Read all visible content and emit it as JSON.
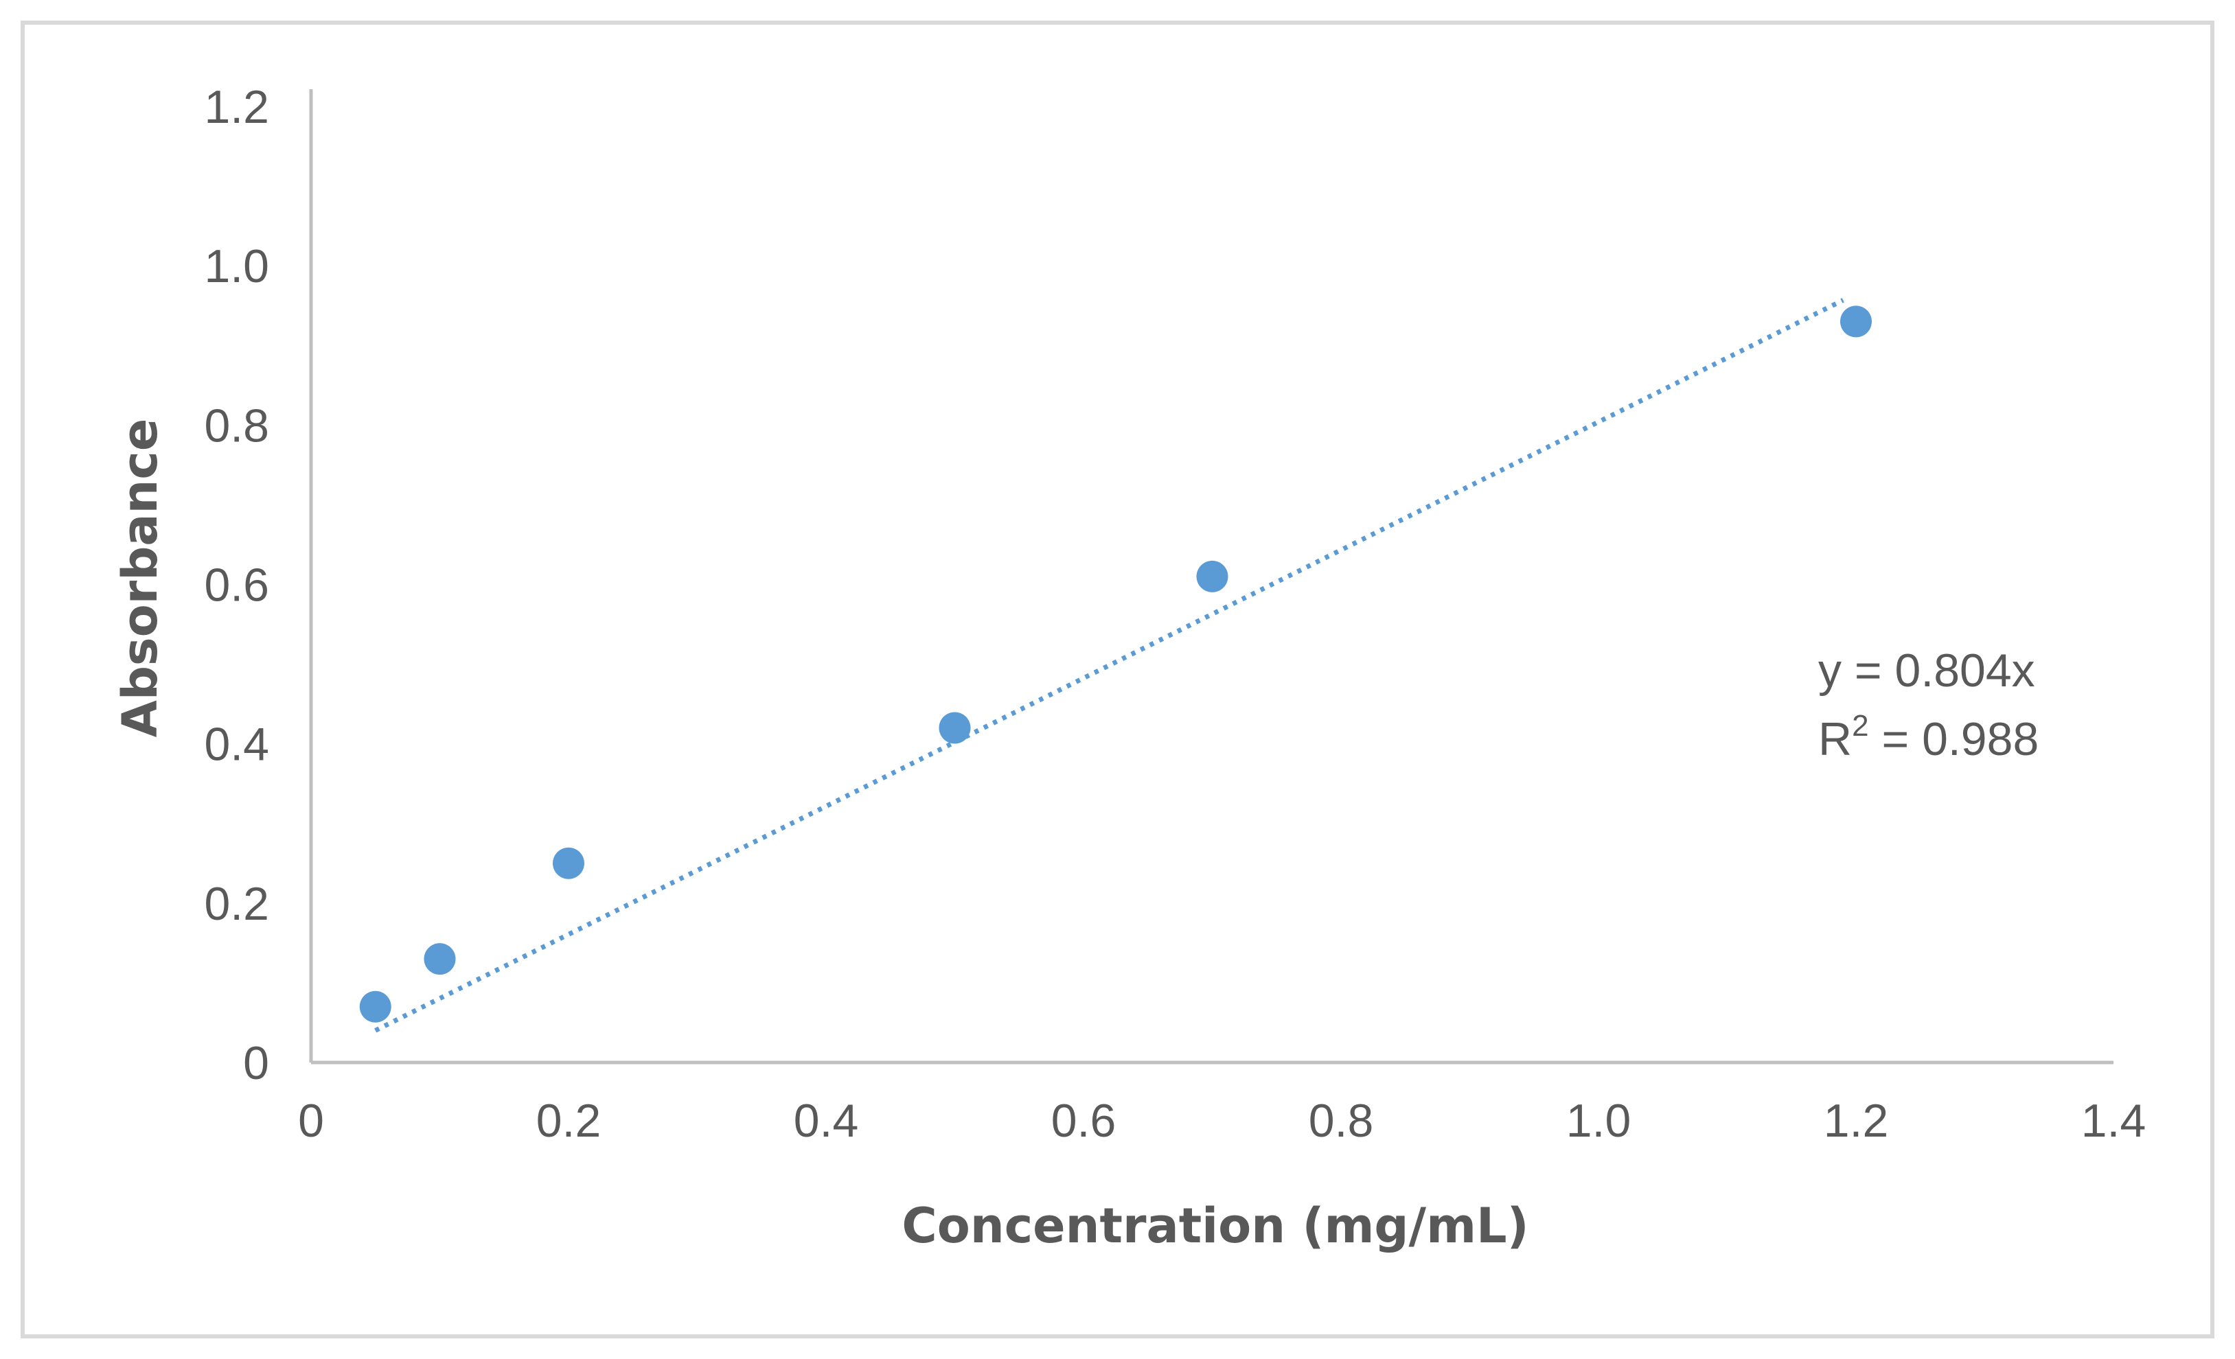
{
  "chart_data": {
    "type": "scatter",
    "title": "",
    "xlabel": "Concentration (mg/mL)",
    "ylabel": "Absorbance",
    "xlim": [
      0,
      1.4
    ],
    "ylim": [
      0,
      1.2
    ],
    "x_ticks": [
      {
        "value": 0,
        "label": "0"
      },
      {
        "value": 0.2,
        "label": "0.2"
      },
      {
        "value": 0.4,
        "label": "0.4"
      },
      {
        "value": 0.6,
        "label": "0.6"
      },
      {
        "value": 0.8,
        "label": "0.8"
      },
      {
        "value": 1.0,
        "label": "1.0"
      },
      {
        "value": 1.2,
        "label": "1.2"
      },
      {
        "value": 1.4,
        "label": "1.4"
      }
    ],
    "y_ticks": [
      {
        "value": 0,
        "label": "0"
      },
      {
        "value": 0.2,
        "label": "0.2"
      },
      {
        "value": 0.4,
        "label": "0.4"
      },
      {
        "value": 0.6,
        "label": "0.6"
      },
      {
        "value": 0.8,
        "label": "0.8"
      },
      {
        "value": 1.0,
        "label": "1.0"
      },
      {
        "value": 1.2,
        "label": "1.2"
      }
    ],
    "grid": false,
    "legend": "none",
    "series": [
      {
        "name": "Absorbance",
        "color": "#5b9bd5",
        "points": [
          {
            "x": 0.05,
            "y": 0.07
          },
          {
            "x": 0.1,
            "y": 0.13
          },
          {
            "x": 0.2,
            "y": 0.25
          },
          {
            "x": 0.5,
            "y": 0.42
          },
          {
            "x": 0.7,
            "y": 0.61
          },
          {
            "x": 1.2,
            "y": 0.93
          }
        ]
      }
    ],
    "trendline": {
      "type": "linear",
      "style": "dotted",
      "color": "#5b9bd5",
      "slope": 0.804,
      "intercept": 0,
      "x_range": [
        0.05,
        1.19
      ],
      "equation_text": "y = 0.804x",
      "r2_prefix": "R",
      "r2_superscript": "2",
      "r2_value_text": " = 0.988"
    }
  }
}
